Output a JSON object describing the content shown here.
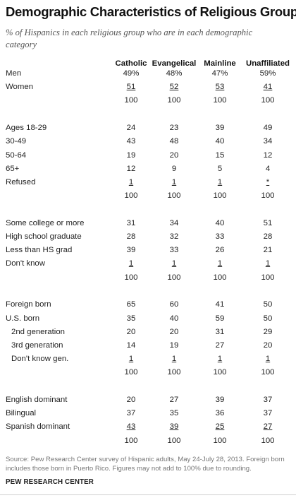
{
  "title": "Demographic Characteristics of Religious Groups",
  "subtitle": "% of Hispanics in each religious group who are in each demographic category",
  "chart_data": {
    "type": "table",
    "columns": [
      "Catholic",
      "Evangelical",
      "Mainline",
      "Unaffiliated"
    ],
    "sections": [
      {
        "rows": [
          {
            "label": "Men",
            "values": [
              "49%",
              "48%",
              "47%",
              "59%"
            ]
          },
          {
            "label": "Women",
            "values": [
              "51",
              "52",
              "53",
              "41"
            ],
            "underline": true
          },
          {
            "label": "",
            "values": [
              "100",
              "100",
              "100",
              "100"
            ]
          }
        ]
      },
      {
        "rows": [
          {
            "label": "Ages 18-29",
            "values": [
              "24",
              "23",
              "39",
              "49"
            ]
          },
          {
            "label": "30-49",
            "values": [
              "43",
              "48",
              "40",
              "34"
            ]
          },
          {
            "label": "50-64",
            "values": [
              "19",
              "20",
              "15",
              "12"
            ]
          },
          {
            "label": "65+",
            "values": [
              "12",
              "9",
              "5",
              "4"
            ]
          },
          {
            "label": "Refused",
            "values": [
              "1",
              "1",
              "1",
              "*"
            ],
            "underline": true
          },
          {
            "label": "",
            "values": [
              "100",
              "100",
              "100",
              "100"
            ]
          }
        ]
      },
      {
        "rows": [
          {
            "label": "Some college or more",
            "values": [
              "31",
              "34",
              "40",
              "51"
            ]
          },
          {
            "label": "High school graduate",
            "values": [
              "28",
              "32",
              "33",
              "28"
            ]
          },
          {
            "label": "Less than HS grad",
            "values": [
              "39",
              "33",
              "26",
              "21"
            ]
          },
          {
            "label": "Don't know",
            "values": [
              "1",
              "1",
              "1",
              "1"
            ],
            "underline": true
          },
          {
            "label": "",
            "values": [
              "100",
              "100",
              "100",
              "100"
            ]
          }
        ]
      },
      {
        "rows": [
          {
            "label": "Foreign born",
            "values": [
              "65",
              "60",
              "41",
              "50"
            ]
          },
          {
            "label": "U.S. born",
            "values": [
              "35",
              "40",
              "59",
              "50"
            ]
          },
          {
            "label": "2nd generation",
            "values": [
              "20",
              "20",
              "31",
              "29"
            ],
            "indent": true
          },
          {
            "label": "3rd generation",
            "values": [
              "14",
              "19",
              "27",
              "20"
            ],
            "indent": true
          },
          {
            "label": "Don't know gen.",
            "values": [
              "1",
              "1",
              "1",
              "1"
            ],
            "underline": true,
            "indent": true
          },
          {
            "label": "",
            "values": [
              "100",
              "100",
              "100",
              "100"
            ]
          }
        ]
      },
      {
        "rows": [
          {
            "label": "English dominant",
            "values": [
              "20",
              "27",
              "39",
              "37"
            ]
          },
          {
            "label": "Bilingual",
            "values": [
              "37",
              "35",
              "36",
              "37"
            ]
          },
          {
            "label": "Spanish dominant",
            "values": [
              "43",
              "39",
              "25",
              "27"
            ],
            "underline": true
          },
          {
            "label": "",
            "values": [
              "100",
              "100",
              "100",
              "100"
            ]
          }
        ]
      }
    ]
  },
  "footnote": "Source: Pew Research Center survey of Hispanic adults, May 24-July 28, 2013. Foreign born includes those born in Puerto Rico. Figures may not add to 100% due to rounding.",
  "credit": "PEW RESEARCH CENTER"
}
